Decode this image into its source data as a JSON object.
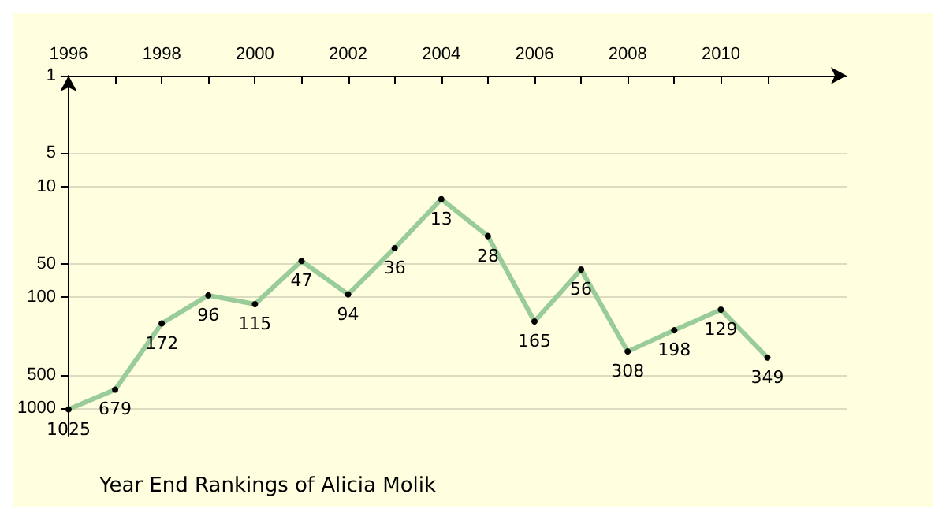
{
  "chart_data": {
    "type": "line",
    "title": "Year End Rankings of Alicia Molik",
    "x": [
      1996,
      1997,
      1998,
      1999,
      2000,
      2001,
      2002,
      2003,
      2004,
      2005,
      2006,
      2007,
      2008,
      2009,
      2010,
      2011
    ],
    "series": [
      {
        "color": "#99cc99",
        "values": [
          1025,
          679,
          172,
          96,
          115,
          47,
          94,
          36,
          13,
          28,
          165,
          56,
          308,
          198,
          129,
          349
        ]
      }
    ],
    "xlim": [
      1996,
      2012.7
    ],
    "xticks": [
      1996,
      {
        "value": 1997,
        "label": null
      },
      1998,
      {
        "value": 1999,
        "label": null
      },
      2000,
      {
        "value": 2001,
        "label": null
      },
      2002,
      {
        "value": 2003,
        "label": null
      },
      2004,
      {
        "value": 2005,
        "label": null
      },
      2006,
      {
        "value": 2007,
        "label": null
      },
      2008,
      {
        "value": 2009,
        "label": null
      },
      2010,
      {
        "value": 2011,
        "label": null
      }
    ],
    "ylim": [
      1800,
      1
    ],
    "yticks": [
      1,
      5,
      10,
      50,
      100,
      500,
      1000
    ],
    "log": "y",
    "grid": "y",
    "marker": "circle",
    "data_labels": true
  }
}
